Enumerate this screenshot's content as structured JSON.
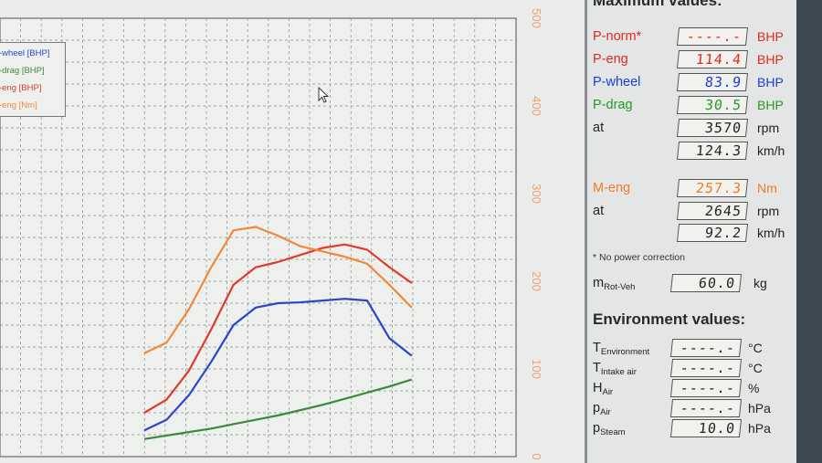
{
  "legend": [
    {
      "label": "-wheel [BHP]",
      "color": "#2a46c8"
    },
    {
      "label": "-drag [BHP]",
      "color": "#3a8a3a"
    },
    {
      "label": "-eng [BHP]",
      "color": "#e03a2a"
    },
    {
      "label": "-eng [Nm]",
      "color": "#f08a3a"
    }
  ],
  "max_section_title": "Maximum values:",
  "max_rows": [
    {
      "label": "P-norm*",
      "value": "----.-",
      "unit": "BHP",
      "color": "red"
    },
    {
      "label": "P-eng",
      "value": "114.4",
      "unit": "BHP",
      "color": "red"
    },
    {
      "label": "P-wheel",
      "value": "83.9",
      "unit": "BHP",
      "color": "blue"
    },
    {
      "label": "P-drag",
      "value": "30.5",
      "unit": "BHP",
      "color": "green"
    },
    {
      "label": "at",
      "value": "3570",
      "unit": "rpm",
      "color": "dark"
    },
    {
      "label": "",
      "value": "124.3",
      "unit": "km/h",
      "color": "dark"
    }
  ],
  "torque_rows": [
    {
      "label": "M-eng",
      "value": "257.3",
      "unit": "Nm",
      "color": "orange"
    },
    {
      "label": "at",
      "value": "2645",
      "unit": "rpm",
      "color": "dark"
    },
    {
      "label": "",
      "value": "92.2",
      "unit": "km/h",
      "color": "dark"
    }
  ],
  "note": "* No power correction",
  "mass": {
    "label": "m",
    "sub": "Rot-Veh",
    "value": "60.0",
    "unit": "kg"
  },
  "env_title": "Environment values:",
  "env_rows": [
    {
      "label": "T",
      "sub": "Environment",
      "value": "----.-",
      "unit": "°C"
    },
    {
      "label": "T",
      "sub": "Intake air",
      "value": "----.-",
      "unit": "°C"
    },
    {
      "label": "H",
      "sub": "Air",
      "value": "----.-",
      "unit": "%"
    },
    {
      "label": "p",
      "sub": "Air",
      "value": "----.-",
      "unit": "hPa"
    },
    {
      "label": "p",
      "sub": "Steam",
      "value": "10.0",
      "unit": "hPa"
    }
  ],
  "chart_data": {
    "type": "line",
    "right_axis_ticks": [
      "0",
      "100",
      "200",
      "300",
      "400",
      "500"
    ],
    "ylim": [
      0,
      500
    ],
    "grid": true,
    "x": [
      0,
      4,
      8,
      12,
      16,
      20,
      24,
      28,
      32,
      36,
      40,
      44,
      48
    ],
    "series": [
      {
        "name": "-wheel [BHP]",
        "color": "#2a46c8",
        "values": [
          30,
          42,
          70,
          108,
          150,
          170,
          175,
          176,
          178,
          180,
          178,
          135,
          115
        ]
      },
      {
        "name": "-drag [BHP]",
        "color": "#3a8a3a",
        "values": [
          20,
          24,
          28,
          32,
          37,
          42,
          47,
          53,
          59,
          66,
          73,
          80,
          88
        ]
      },
      {
        "name": "-eng [BHP]",
        "color": "#e03a2a",
        "values": [
          50,
          65,
          98,
          145,
          196,
          216,
          222,
          230,
          238,
          242,
          236,
          216,
          198
        ]
      },
      {
        "name": "-eng [Nm]",
        "color": "#f08a3a",
        "values": [
          118,
          130,
          168,
          216,
          258,
          262,
          252,
          240,
          234,
          228,
          220,
          196,
          170
        ]
      }
    ]
  }
}
